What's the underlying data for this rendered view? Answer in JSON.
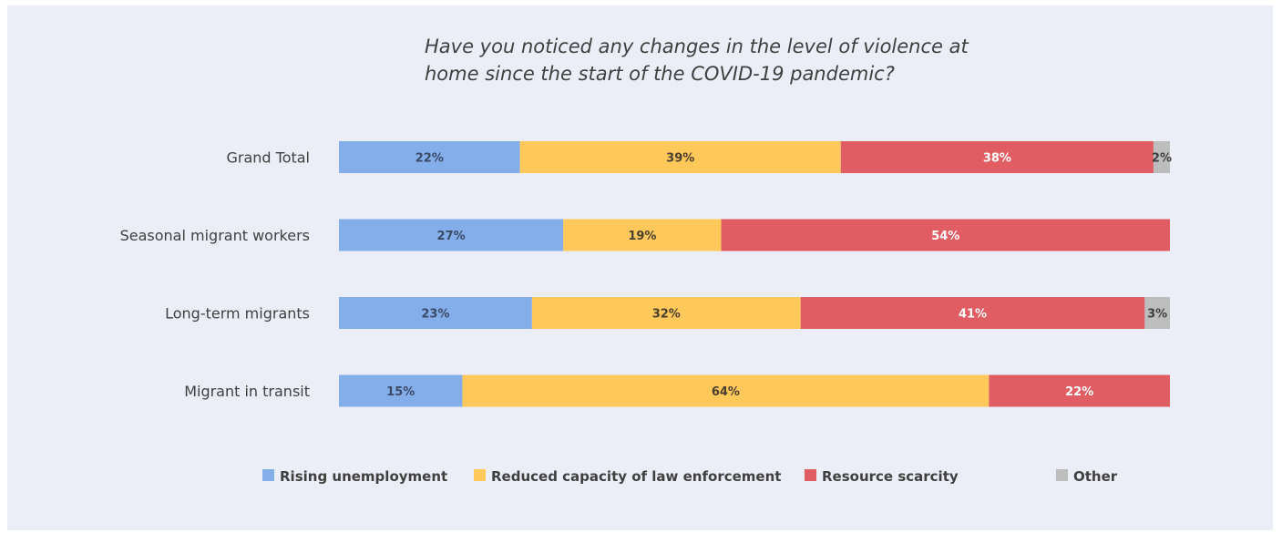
{
  "chart_data": {
    "type": "bar",
    "orientation": "horizontal",
    "stacked": true,
    "title": "Have you noticed any changes in the level of violence at\nhome since the start of the COVID-19 pandemic?",
    "categories": [
      "Grand Total",
      "Seasonal migrant workers",
      "Long-term migrants",
      "Migrant in transit"
    ],
    "series": [
      {
        "name": "Rising unemployment",
        "color": "#84aeea",
        "label_color": "#3a4a66",
        "values": [
          22,
          27,
          23,
          15
        ]
      },
      {
        "name": "Reduced capacity of law enforcement",
        "color": "#fec85a",
        "label_color": "#4a4030",
        "values": [
          39,
          19,
          32,
          64
        ]
      },
      {
        "name": "Resource scarcity",
        "color": "#e05d63",
        "label_color": "#ffffff",
        "values": [
          38,
          54,
          41,
          22
        ]
      },
      {
        "name": "Other",
        "color": "#bdbdbd",
        "label_color": "#3f3f3f",
        "values": [
          2,
          0,
          3,
          0
        ]
      }
    ],
    "value_suffix": "%",
    "legend_position": "bottom",
    "grid": false
  }
}
